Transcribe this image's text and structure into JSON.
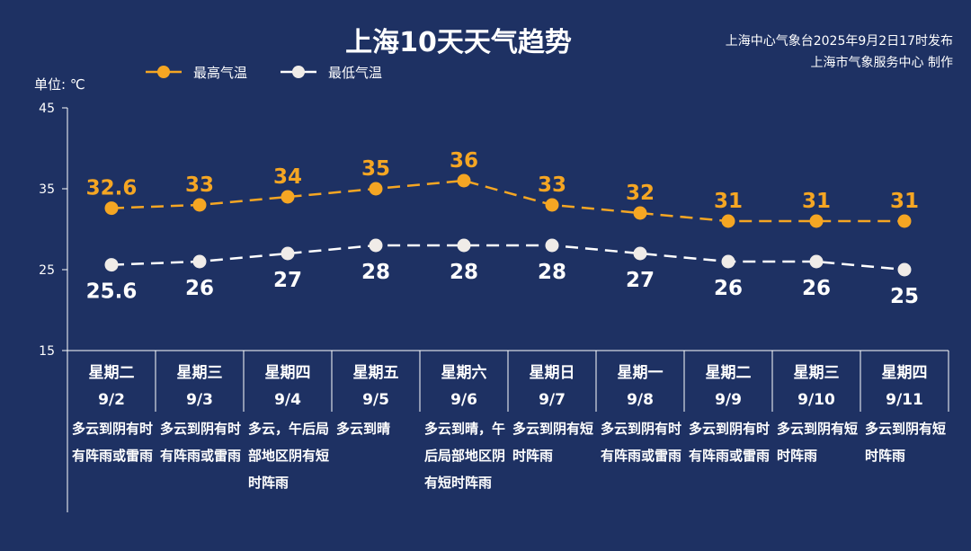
{
  "title": "上海10天天气趋势",
  "issuer": {
    "line1": "上海中心气象台2025年9月2日17时发布",
    "line2": "上海市气象服务中心 制作"
  },
  "unit_label": "单位: ℃",
  "colors": {
    "background": "#1e3163",
    "high": "#f5a623",
    "low": "#ffffff",
    "axis": "#ffffff",
    "high_label": "#f5a623",
    "low_label": "#ffffff"
  },
  "days": [
    {
      "weekday": "星期二",
      "date": "9/2",
      "desc": "多云到阴有时有阵雨或雷雨"
    },
    {
      "weekday": "星期三",
      "date": "9/3",
      "desc": "多云到阴有时有阵雨或雷雨"
    },
    {
      "weekday": "星期四",
      "date": "9/4",
      "desc": "多云，午后局部地区阴有短时阵雨"
    },
    {
      "weekday": "星期五",
      "date": "9/5",
      "desc": "多云到晴"
    },
    {
      "weekday": "星期六",
      "date": "9/6",
      "desc": "多云到晴，午后局部地区阴有短时阵雨"
    },
    {
      "weekday": "星期日",
      "date": "9/7",
      "desc": "多云到阴有短时阵雨"
    },
    {
      "weekday": "星期一",
      "date": "9/8",
      "desc": "多云到阴有时有阵雨或雷雨"
    },
    {
      "weekday": "星期二",
      "date": "9/9",
      "desc": "多云到阴有时有阵雨或雷雨"
    },
    {
      "weekday": "星期三",
      "date": "9/10",
      "desc": "多云到阴有短时阵雨"
    },
    {
      "weekday": "星期四",
      "date": "9/11",
      "desc": "多云到阴有短时阵雨"
    }
  ],
  "chart_data": {
    "type": "line",
    "title": "上海10天天气趋势",
    "ylabel": "单位: ℃",
    "ylim": [
      15,
      45
    ],
    "yticks": [
      15,
      25,
      35,
      45
    ],
    "categories": [
      "9/2",
      "9/3",
      "9/4",
      "9/5",
      "9/6",
      "9/7",
      "9/8",
      "9/9",
      "9/10",
      "9/11"
    ],
    "legend_position": "top-left",
    "grid": false,
    "series": [
      {
        "name": "最高气温",
        "values": [
          32.6,
          33,
          34,
          35,
          36,
          33,
          32,
          31,
          31,
          31
        ],
        "labels": [
          "32.6",
          "33",
          "34",
          "35",
          "36",
          "33",
          "32",
          "31",
          "31",
          "31"
        ],
        "style": "dashed",
        "color": "#f5a623"
      },
      {
        "name": "最低气温",
        "values": [
          25.6,
          26,
          27,
          28,
          28,
          28,
          27,
          26,
          26,
          25
        ],
        "labels": [
          "25.6",
          "26",
          "27",
          "28",
          "28",
          "28",
          "27",
          "26",
          "26",
          "25"
        ],
        "style": "dashed",
        "color": "#ffffff"
      }
    ]
  }
}
